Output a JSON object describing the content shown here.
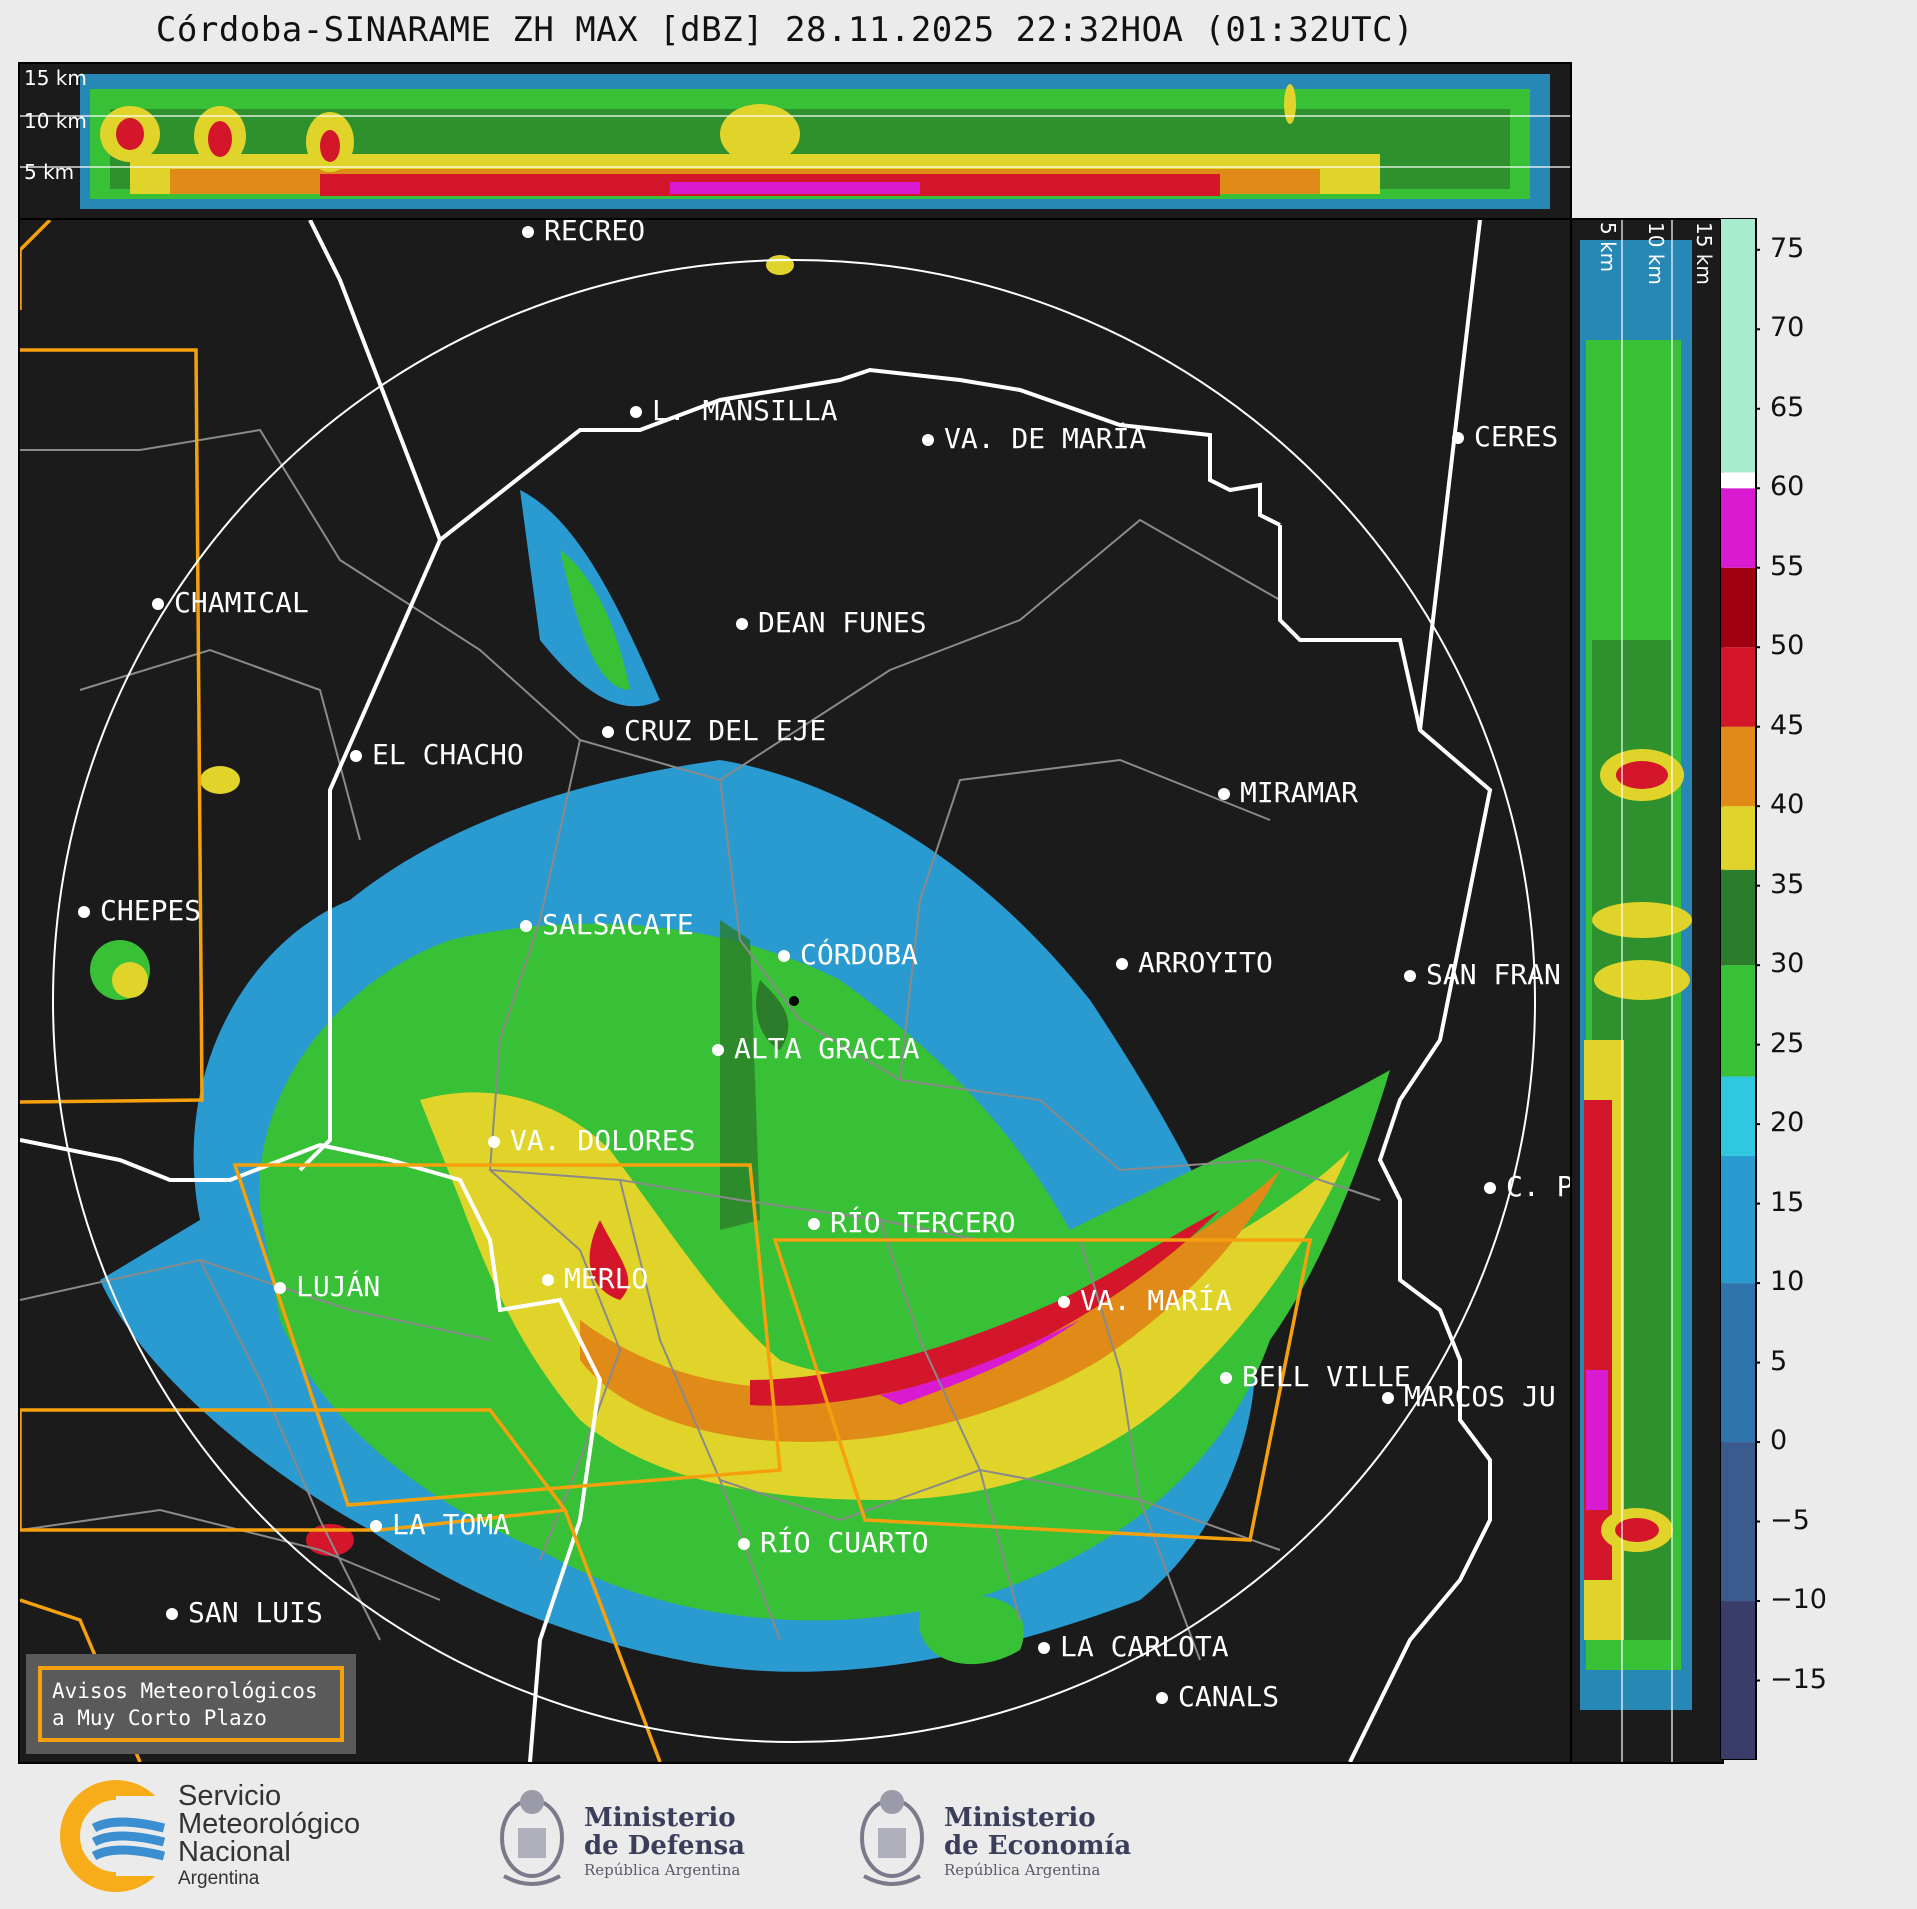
{
  "title": "Córdoba-SINARAME ZH MAX [dBZ] 28.11.2025 22:32HOA (01:32UTC)",
  "top_panel": {
    "height_labels": [
      "15 km",
      "10 km",
      "5 km"
    ]
  },
  "side_panel": {
    "height_labels": [
      "5 km",
      "10 km",
      "15 km"
    ]
  },
  "colorbar": {
    "ticks": [
      "75",
      "70",
      "65",
      "60",
      "55",
      "50",
      "45",
      "40",
      "35",
      "30",
      "25",
      "20",
      "15",
      "10",
      "5",
      "0",
      "−5",
      "−10",
      "−15"
    ],
    "tick_values": [
      75,
      70,
      65,
      60,
      55,
      50,
      45,
      40,
      35,
      30,
      25,
      20,
      15,
      10,
      5,
      0,
      -5,
      -10,
      -15
    ],
    "range": [
      -20,
      77
    ],
    "colors": [
      {
        "from": -20,
        "to": -10,
        "color": "#3a3c6a"
      },
      {
        "from": -10,
        "to": 0,
        "color": "#3b5b8e"
      },
      {
        "from": 0,
        "to": 10,
        "color": "#2f74ad"
      },
      {
        "from": 10,
        "to": 18,
        "color": "#2a9bd0"
      },
      {
        "from": 18,
        "to": 23,
        "color": "#2fc8e0"
      },
      {
        "from": 23,
        "to": 30,
        "color": "#38c036"
      },
      {
        "from": 30,
        "to": 36,
        "color": "#2b7d2b"
      },
      {
        "from": 36,
        "to": 40,
        "color": "#e0d42a"
      },
      {
        "from": 40,
        "to": 45,
        "color": "#e08a17"
      },
      {
        "from": 45,
        "to": 50,
        "color": "#d4162a"
      },
      {
        "from": 50,
        "to": 55,
        "color": "#9e0012"
      },
      {
        "from": 55,
        "to": 60,
        "color": "#d81bd0"
      },
      {
        "from": 60,
        "to": 61,
        "color": "#ffffff"
      },
      {
        "from": 61,
        "to": 77,
        "color": "#a8ecd0"
      }
    ]
  },
  "cities": [
    {
      "name": "RECREO"
    },
    {
      "name": "L. MANSILLA"
    },
    {
      "name": "VA. DE MARÍA"
    },
    {
      "name": "CERES"
    },
    {
      "name": "CHAMICAL"
    },
    {
      "name": "DEAN FUNES"
    },
    {
      "name": "CRUZ DEL EJE"
    },
    {
      "name": "EL CHACHO"
    },
    {
      "name": "MIRAMAR"
    },
    {
      "name": "CHEPES"
    },
    {
      "name": "SALSACATE"
    },
    {
      "name": "CÓRDOBA"
    },
    {
      "name": "ARROYITO"
    },
    {
      "name": "SAN FRAN"
    },
    {
      "name": "ALTA GRACIA"
    },
    {
      "name": "VA. DOLORES"
    },
    {
      "name": "C. P"
    },
    {
      "name": "RÍO TERCERO"
    },
    {
      "name": "LUJÁN"
    },
    {
      "name": "MERLO"
    },
    {
      "name": "VA. MARÍA"
    },
    {
      "name": "BELL VILLE"
    },
    {
      "name": "MARCOS JU"
    },
    {
      "name": "LA TOMA"
    },
    {
      "name": "RÍO CUARTO"
    },
    {
      "name": "SAN LUIS"
    },
    {
      "name": "LA CARLOTA"
    },
    {
      "name": "CANALS"
    }
  ],
  "avisos": {
    "line1": "Avisos Meteorológicos",
    "line2": "a Muy Corto Plazo"
  },
  "footer": {
    "smn": {
      "line1": "Servicio",
      "line2": "Meteorológico",
      "line3": "Nacional",
      "line4": "Argentina"
    },
    "defensa": {
      "line1": "Ministerio",
      "line2": "de Defensa",
      "sub": "República Argentina"
    },
    "economia": {
      "line1": "Ministerio",
      "line2": "de Economía",
      "sub": "República Argentina"
    }
  },
  "colors": {
    "background": "#1b1b1b",
    "warning": "#f5a00d",
    "border": "#ffffff"
  }
}
